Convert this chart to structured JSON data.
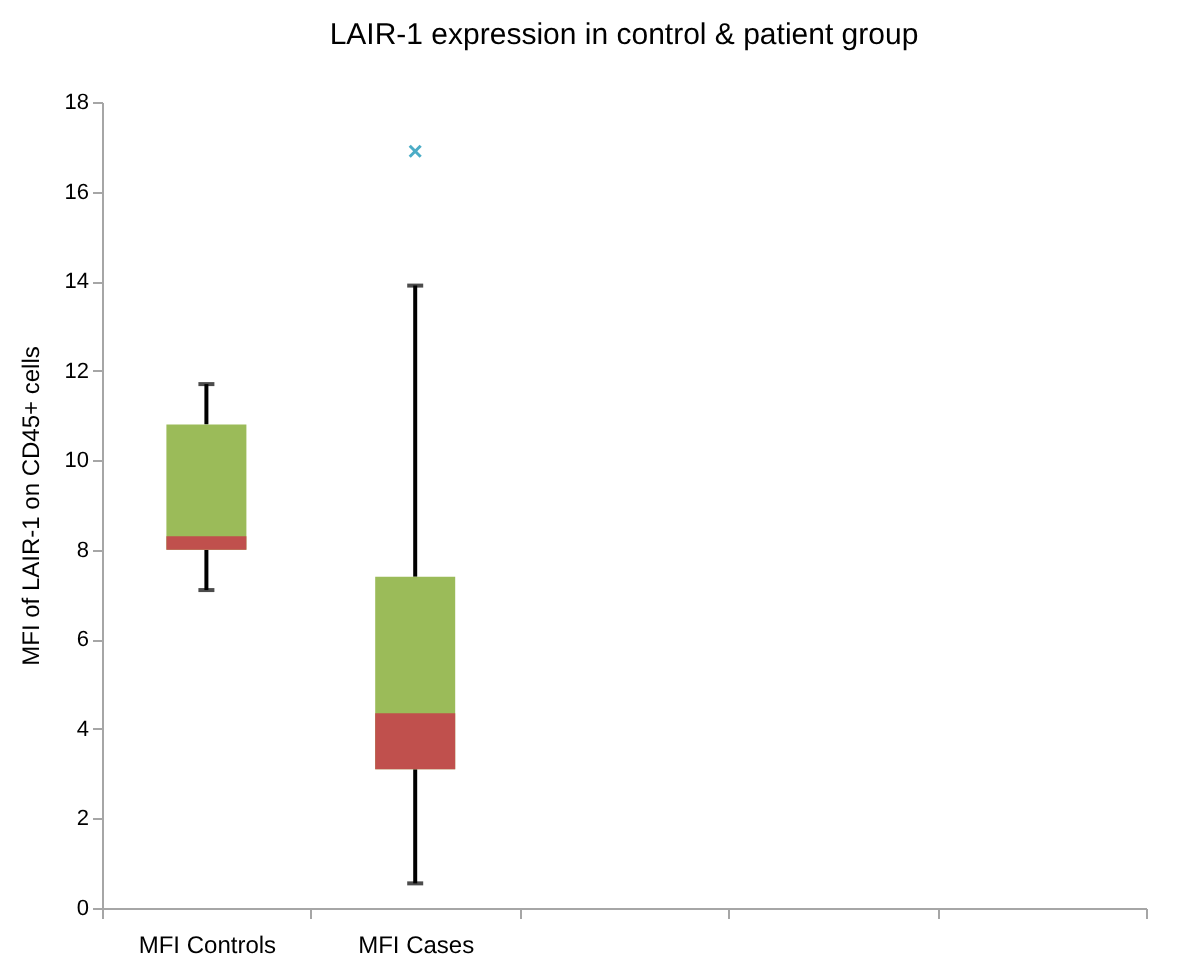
{
  "chart_data": {
    "type": "box",
    "title": "LAIR-1 expression in control & patient group",
    "ylabel": "MFI of LAIR-1 on CD45+ cells",
    "categories": [
      "MFI Controls",
      "MFI Cases",
      null,
      null,
      null
    ],
    "series": [
      {
        "color": "#9bbb59",
        "boxes": [
          {
            "low": 7.1,
            "q1": 8.0,
            "median": 8.3,
            "q3": 10.8,
            "high": 11.7
          },
          {
            "low": 0.55,
            "q1": 3.1,
            "median": 4.35,
            "q3": 7.4,
            "high": 13.9,
            "outliers": [
              16.9
            ]
          },
          null,
          null,
          null
        ]
      }
    ],
    "marker": "cross",
    "ylim": [
      0,
      18
    ],
    "yticks": [
      0,
      2,
      4,
      6,
      8,
      10,
      12,
      14,
      16,
      18
    ],
    "grid": false
  }
}
